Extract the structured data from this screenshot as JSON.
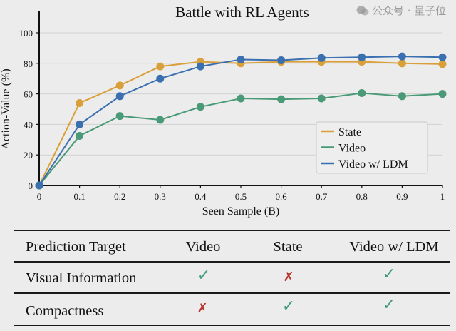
{
  "chart_data": {
    "type": "line",
    "title": "Battle with RL Agents",
    "xlabel": "Seen Sample (B)",
    "ylabel": "Action-Value (%)",
    "x": [
      0,
      0.1,
      0.2,
      0.3,
      0.4,
      0.5,
      0.6,
      0.7,
      0.8,
      0.9,
      1
    ],
    "x_tick_labels": [
      "0",
      "0.1",
      "0.2",
      "0.3",
      "0.4",
      "0.5",
      "0.6",
      "0.7",
      "0.8",
      "0.9",
      "1"
    ],
    "y_ticks": [
      0,
      20,
      40,
      60,
      80,
      100
    ],
    "xlim": [
      0,
      1
    ],
    "ylim": [
      0,
      100
    ],
    "grid": "horizontal",
    "legend_position": "lower-right",
    "series": [
      {
        "name": "State",
        "color": "#d9a03a",
        "values": [
          0,
          54,
          65.5,
          78,
          81,
          80,
          81,
          81,
          81,
          80,
          79.5
        ]
      },
      {
        "name": "Video",
        "color": "#4a9a78",
        "values": [
          0,
          32.5,
          45.5,
          43,
          51.5,
          57,
          56.5,
          57,
          60.5,
          58.5,
          60
        ]
      },
      {
        "name": "Video w/ LDM",
        "color": "#3a6fb0",
        "values": [
          0,
          40,
          58.5,
          70,
          78,
          82.5,
          82,
          83.5,
          84,
          84.5,
          84
        ]
      }
    ]
  },
  "table": {
    "headers": [
      "Prediction Target",
      "Video",
      "State",
      "Video w/ LDM"
    ],
    "rows": [
      {
        "label": "Visual Information",
        "cells": [
          "✓",
          "✗",
          "✓"
        ]
      },
      {
        "label": "Compactness",
        "cells": [
          "✗",
          "✓",
          "✓"
        ]
      }
    ],
    "check_color": "#3f9a78",
    "cross_color": "#b8322a"
  },
  "watermark": "公众号 · 量子位"
}
